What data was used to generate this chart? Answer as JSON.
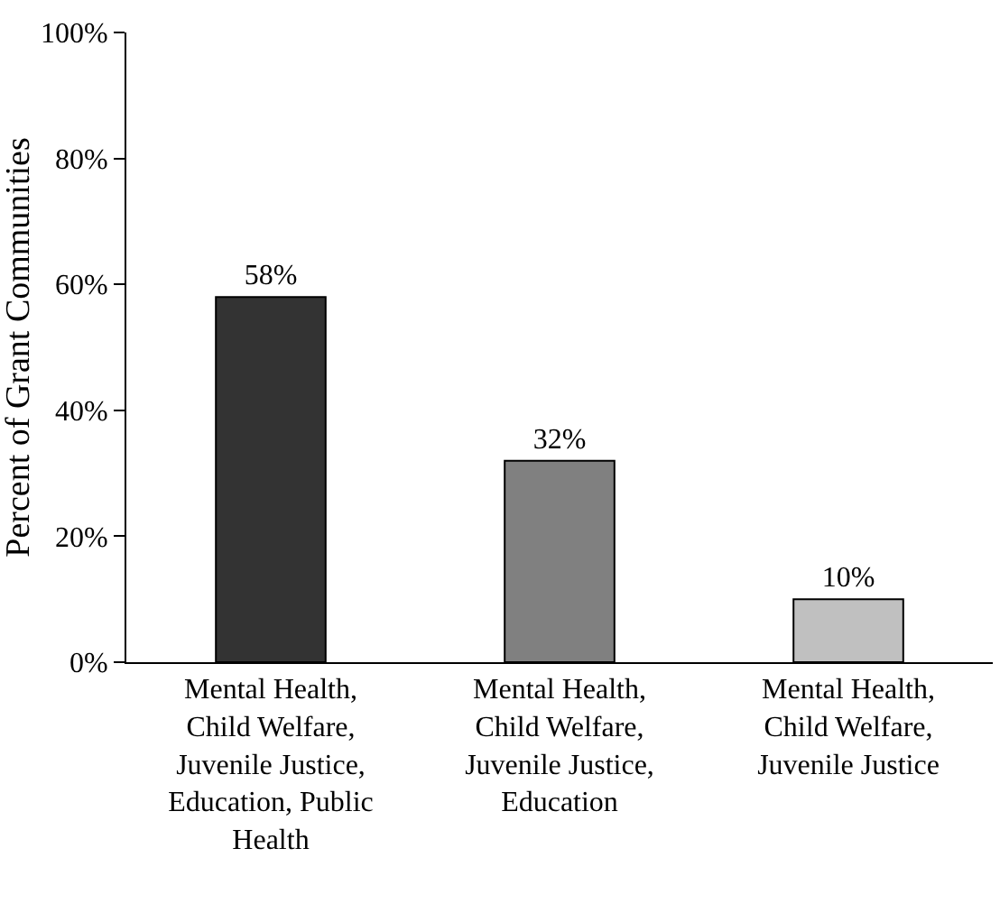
{
  "chart_data": {
    "type": "bar",
    "ylabel": "Percent of Grant Communities",
    "categories": [
      "Mental Health, Child Welfare, Juvenile Justice, Education, Public Health",
      "Mental Health, Child Welfare, Juvenile Justice, Education",
      "Mental Health, Child Welfare, Juvenile Justice"
    ],
    "values": [
      58,
      32,
      10
    ],
    "colors": [
      "#333333",
      "#808080",
      "#c0c0c0"
    ],
    "value_labels": [
      "58%",
      "32%",
      "10%"
    ],
    "ylim": [
      0,
      100
    ],
    "yticks": [
      {
        "value": 0,
        "label": "0%"
      },
      {
        "value": 20,
        "label": "20%"
      },
      {
        "value": 40,
        "label": "40%"
      },
      {
        "value": 60,
        "label": "60%"
      },
      {
        "value": 80,
        "label": "80%"
      },
      {
        "value": 100,
        "label": "100%"
      }
    ],
    "grid": false
  }
}
